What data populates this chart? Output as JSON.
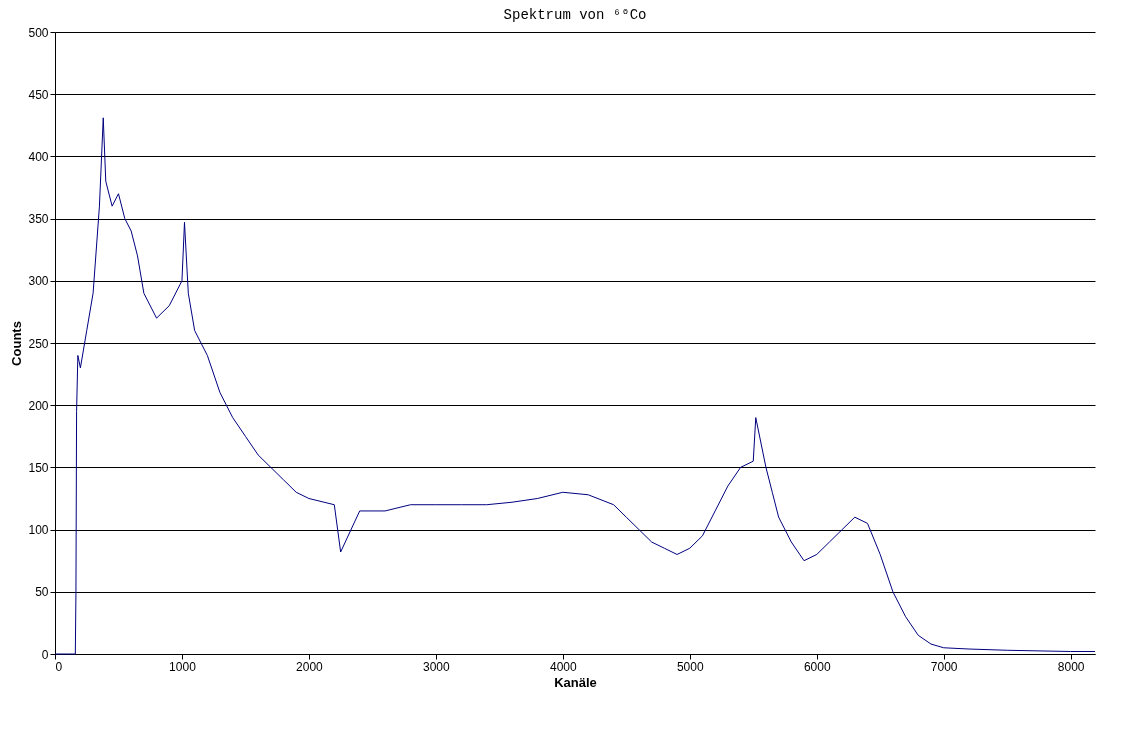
{
  "chart_data": {
    "type": "line",
    "title": "Spektrum von ⁶⁰Co",
    "xlabel": "Kanäle",
    "ylabel": "Counts",
    "x": [
      0,
      100,
      150,
      160,
      165,
      170,
      180,
      200,
      250,
      300,
      350,
      380,
      400,
      450,
      500,
      550,
      600,
      650,
      700,
      800,
      900,
      1000,
      1020,
      1050,
      1100,
      1200,
      1300,
      1400,
      1500,
      1600,
      1700,
      1800,
      1900,
      2000,
      2200,
      2250,
      2400,
      2600,
      2800,
      3000,
      3200,
      3400,
      3600,
      3800,
      4000,
      4200,
      4400,
      4500,
      4600,
      4700,
      4800,
      4900,
      5000,
      5100,
      5200,
      5300,
      5400,
      5500,
      5520,
      5600,
      5650,
      5700,
      5800,
      5900,
      6000,
      6100,
      6200,
      6300,
      6400,
      6500,
      6600,
      6700,
      6800,
      6900,
      7000,
      7200,
      7500,
      8000,
      8192
    ],
    "series": [
      {
        "color": "#000080",
        "values": [
          0,
          0,
          0,
          0,
          50,
          195,
          240,
          230,
          260,
          290,
          360,
          431,
          380,
          360,
          370,
          350,
          340,
          320,
          290,
          270,
          280,
          300,
          347,
          290,
          260,
          240,
          210,
          190,
          175,
          160,
          150,
          140,
          130,
          125,
          120,
          82,
          115,
          115,
          120,
          120,
          120,
          120,
          122,
          125,
          130,
          128,
          120,
          110,
          100,
          90,
          85,
          80,
          85,
          95,
          115,
          135,
          150,
          155,
          190,
          150,
          130,
          110,
          90,
          75,
          80,
          90,
          100,
          110,
          105,
          80,
          50,
          30,
          15,
          8,
          5,
          4,
          3,
          2,
          2
        ]
      }
    ],
    "xlim": [
      0,
      8192
    ],
    "xticks": [
      0,
      1000,
      2000,
      3000,
      4000,
      5000,
      6000,
      7000,
      8000
    ],
    "ylim": [
      0,
      500
    ],
    "yticks": [
      0,
      50,
      100,
      150,
      200,
      250,
      300,
      350,
      400,
      450,
      500
    ],
    "grid": "y",
    "line_style": "solid"
  }
}
